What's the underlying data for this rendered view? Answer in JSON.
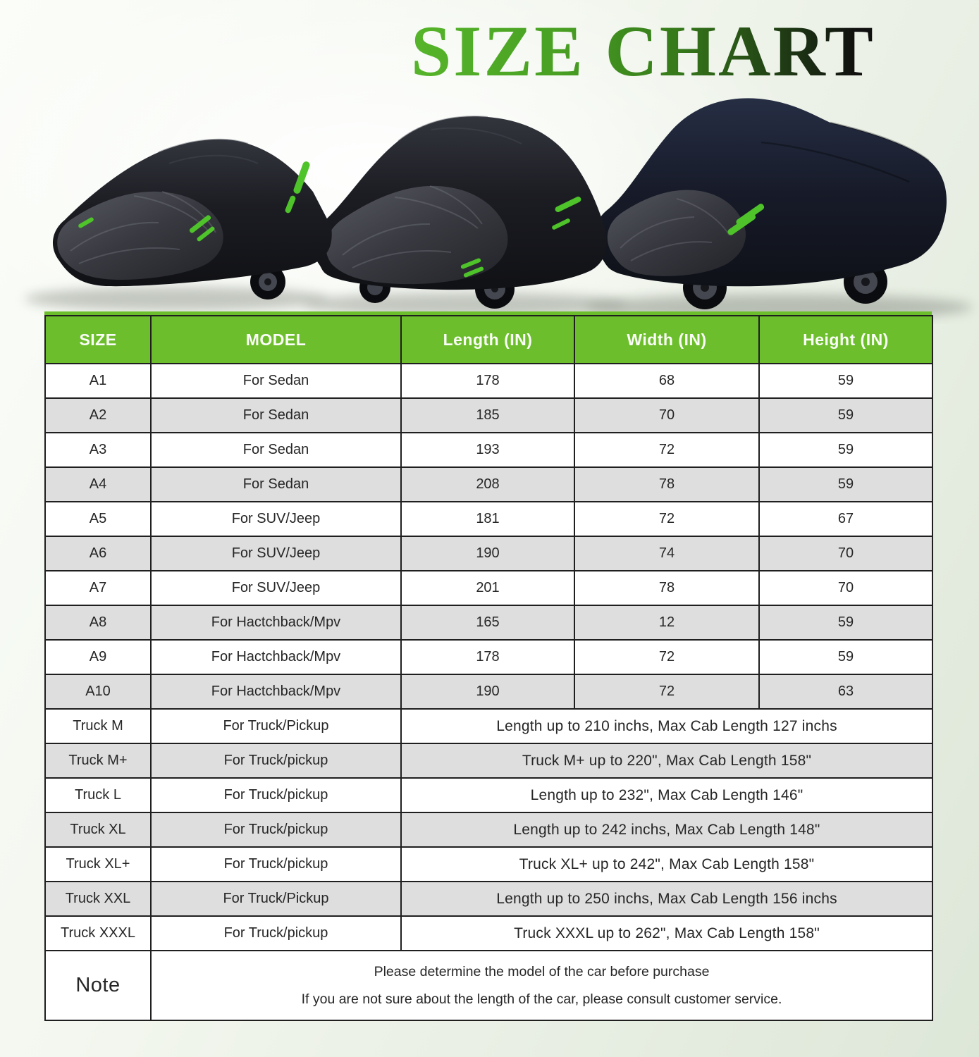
{
  "title": "SIZE CHART",
  "colors": {
    "accent_green": "#6cbe2c",
    "title_gradient_start": "#56b52a",
    "title_gradient_end": "#101010",
    "row_alt_gray": "#dedede",
    "border_dark": "#1f1f1f",
    "zipper_green": "#4ec32a",
    "cover_black": "#17181d"
  },
  "hero": {
    "description": "Three vehicles under black car covers with green zipper accents",
    "vehicles": [
      "sedan",
      "suv",
      "pickup-truck"
    ]
  },
  "table": {
    "headers": [
      "SIZE",
      "MODEL",
      "Length (IN)",
      "Width (IN)",
      "Height (IN)"
    ],
    "rows": [
      {
        "size": "A1",
        "model": "For Sedan",
        "length": "178",
        "width": "68",
        "height": "59"
      },
      {
        "size": "A2",
        "model": "For Sedan",
        "length": "185",
        "width": "70",
        "height": "59"
      },
      {
        "size": "A3",
        "model": "For Sedan",
        "length": "193",
        "width": "72",
        "height": "59"
      },
      {
        "size": "A4",
        "model": "For Sedan",
        "length": "208",
        "width": "78",
        "height": "59"
      },
      {
        "size": "A5",
        "model": "For SUV/Jeep",
        "length": "181",
        "width": "72",
        "height": "67"
      },
      {
        "size": "A6",
        "model": "For SUV/Jeep",
        "length": "190",
        "width": "74",
        "height": "70"
      },
      {
        "size": "A7",
        "model": "For SUV/Jeep",
        "length": "201",
        "width": "78",
        "height": "70"
      },
      {
        "size": "A8",
        "model": "For Hactchback/Mpv",
        "length": "165",
        "width": "12",
        "height": "59"
      },
      {
        "size": "A9",
        "model": "For Hactchback/Mpv",
        "length": "178",
        "width": "72",
        "height": "59"
      },
      {
        "size": "A10",
        "model": "For Hactchback/Mpv",
        "length": "190",
        "width": "72",
        "height": "63"
      },
      {
        "size": "Truck M",
        "model": "For Truck/Pickup",
        "span": "Length up to 210 inchs, Max Cab Length 127 inchs"
      },
      {
        "size": "Truck M+",
        "model": "For Truck/pickup",
        "span": "Truck M+ up to 220\", Max Cab Length 158\""
      },
      {
        "size": "Truck L",
        "model": "For Truck/pickup",
        "span": "Length  up to 232\", Max Cab Length 146\""
      },
      {
        "size": "Truck XL",
        "model": "For Truck/pickup",
        "span": "Length up to 242 inchs, Max Cab Length 148\""
      },
      {
        "size": "Truck XL+",
        "model": "For Truck/pickup",
        "span": "Truck XL+ up to 242\", Max Cab Length 158\""
      },
      {
        "size": "Truck XXL",
        "model": "For Truck/Pickup",
        "span": "Length up to 250 inchs, Max Cab Length 156 inchs"
      },
      {
        "size": "Truck XXXL",
        "model": "For Truck/pickup",
        "span": "Truck XXXL up to 262\", Max Cab Length 158\""
      }
    ],
    "note": {
      "label": "Note",
      "line1": "Please determine the model of the car before purchase",
      "line2": "If you are not sure about the length of the car, please consult customer service."
    }
  }
}
